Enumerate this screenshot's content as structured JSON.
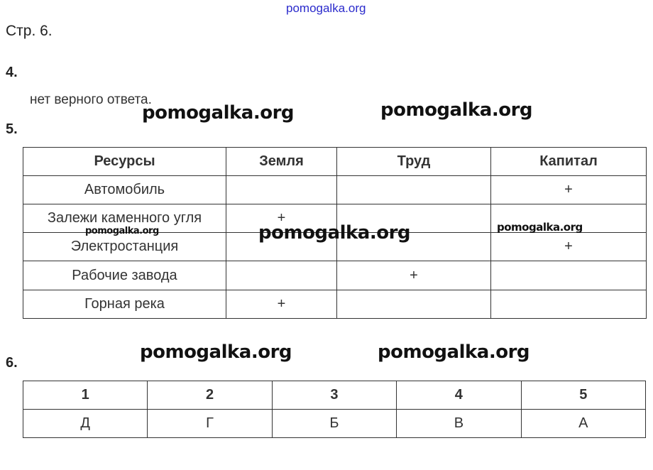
{
  "watermarks": {
    "top": "pomogalka.org",
    "marks": [
      "pomogalka.org",
      "pomogalka.org",
      "pomogalka.org",
      "pomogalka.org",
      "pomogalka.org",
      "pomogalka.org",
      "pomogalka.org"
    ],
    "top_color": "#2a2acc"
  },
  "page_label": "Стр. 6.",
  "q4": {
    "number": "4.",
    "answer": "нет верного ответа."
  },
  "q5": {
    "number": "5.",
    "headers": [
      "Ресурсы",
      "Земля",
      "Труд",
      "Капитал"
    ],
    "rows": [
      [
        "Автомобиль",
        "",
        "",
        "+"
      ],
      [
        "Залежи каменного угля",
        "+",
        "",
        ""
      ],
      [
        "Электростанция",
        "",
        "",
        "+"
      ],
      [
        "Рабочие завода",
        "",
        "+",
        ""
      ],
      [
        "Горная река",
        "+",
        "",
        ""
      ]
    ]
  },
  "q6": {
    "number": "6.",
    "headers": [
      "1",
      "2",
      "3",
      "4",
      "5"
    ],
    "answers": [
      "Д",
      "Г",
      "Б",
      "В",
      "А"
    ]
  }
}
